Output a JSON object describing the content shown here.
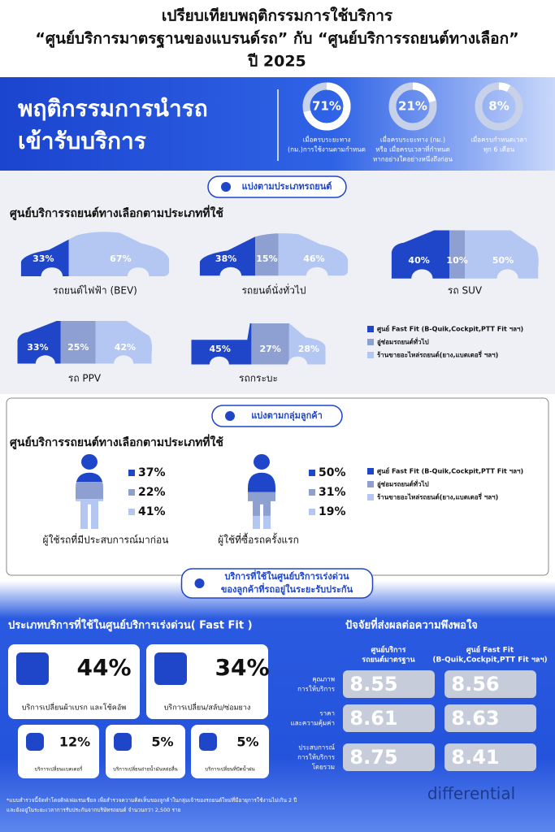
{
  "header": {
    "title": [
      "เปรียบเทียบพฤติกรรมการใช้บริการ",
      "“ศูนย์บริการมาตรฐานของแบรนด์รถ” กับ “ศูนย์บริการรถยนต์ทางเลือก”",
      "ปี 2025"
    ]
  },
  "behavior": {
    "title": [
      "พฤติกรรมการนำรถ",
      "เข้ารับบริการ"
    ],
    "stats": [
      {
        "value": 71,
        "label": "71%",
        "caption": [
          "เมื่อครบระยะทาง",
          "(กม.)การใช้งานตามกำหนด"
        ]
      },
      {
        "value": 21,
        "label": "21%",
        "caption": [
          "เมื่อครบระยะทาง (กม.)",
          "หรือ เมื่อครบเวลาที่กำหนด",
          "หากอย่างใดอย่างหนึ่งถึงก่อน"
        ]
      },
      {
        "value": 8,
        "label": "8%",
        "caption": [
          "เมื่อครบกำหนดเวลา",
          "ทุก 6 เดือน"
        ]
      }
    ]
  },
  "segment_colors": [
    "#1f45c9",
    "#8e9fd2",
    "#b4c7f2"
  ],
  "legend": [
    "ศูนย์ Fast Fit (B-Quik,Cockpit,PTT Fit ฯลฯ)",
    "อู่ซ่อมรถยนต์ทั่วไป",
    "ร้านขายอะไหล่รถยนต์(ยาง,แบตเตอรี่ ฯลฯ)"
  ],
  "by_car_type": {
    "tag": "แบ่งตามประเภทรถยนต์",
    "heading": "ศูนย์บริการรถยนต์ทางเลือกตามประเภทที่ใช้",
    "items": [
      {
        "label": "รถยนต์ไฟฟ้า (BEV)",
        "values": [
          33,
          null,
          67
        ],
        "value_labels": [
          "33%",
          null,
          "67%"
        ]
      },
      {
        "label": "รถยนต์นั่งทั่วไป",
        "values": [
          38,
          15,
          46
        ],
        "value_labels": [
          "38%",
          "15%",
          "46%"
        ]
      },
      {
        "label": "รถ SUV",
        "values": [
          40,
          10,
          50
        ],
        "value_labels": [
          "40%",
          "10%",
          "50%"
        ]
      },
      {
        "label": "รถ PPV",
        "values": [
          33,
          25,
          42
        ],
        "value_labels": [
          "33%",
          "25%",
          "42%"
        ]
      },
      {
        "label": "รถกระบะ",
        "values": [
          45,
          27,
          28
        ],
        "value_labels": [
          "45%",
          "27%",
          "28%"
        ]
      }
    ]
  },
  "by_customer": {
    "tag": "แบ่งตามกลุ่มลูกค้า",
    "heading": "ศูนย์บริการรถยนต์ทางเลือกตามประเภทที่ใช้",
    "items": [
      {
        "label": "ผู้ใช้รถที่มีประสบการณ์มาก่อน",
        "values": [
          37,
          22,
          41
        ],
        "value_labels": [
          "37%",
          "22%",
          "41%"
        ]
      },
      {
        "label": "ผู้ใช้ที่ซื้อรถครั้งแรก",
        "values": [
          50,
          31,
          19
        ],
        "value_labels": [
          "50%",
          "31%",
          "19%"
        ]
      }
    ]
  },
  "fast_fit": {
    "tag": [
      "บริการที่ใช้ในศูนย์บริการเร่งด่วน",
      "ของลูกค้าที่รถอยู่ในระยะรับประกัน"
    ],
    "heading": "ประเภทบริการที่ใช้ในศูนย์บริการเร่งด่วน( Fast Fit )",
    "services": [
      {
        "value": "44%",
        "label": "บริการเปลี่ยนผ้าเบรก และโช้คอัพ"
      },
      {
        "value": "34%",
        "label": "บริการเปลี่ยน/สลับ/ซ่อมยาง"
      },
      {
        "value": "12%",
        "label": "บริการเปลี่ยนแบตเตอรี่"
      },
      {
        "value": "5%",
        "label": "บริการเปลี่ยนถ่ายน้ำมันหล่อลื่น"
      },
      {
        "value": "5%",
        "label": "บริการเปลี่ยนที่ปัดน้ำฝน"
      }
    ]
  },
  "satisfaction": {
    "heading": "ปัจจัยที่ส่งผลต่อความพึงพอใจ",
    "columns": [
      [
        "ศูนย์บริการ",
        "รถยนต์มาตรฐาน"
      ],
      [
        "ศูนย์ Fast Fit",
        "(B-Quik,Cockpit,PTT Fit ฯลฯ)"
      ]
    ],
    "rows": [
      {
        "label": [
          "คุณภาพ",
          "การให้บริการ"
        ],
        "scores": [
          8.55,
          8.56
        ]
      },
      {
        "label": [
          "ราคา",
          "และความคุ้มค่า"
        ],
        "scores": [
          8.61,
          8.63
        ]
      },
      {
        "label": [
          "ประสบการณ์",
          "การให้บริการ",
          "โดยรวม"
        ],
        "scores": [
          8.75,
          8.41
        ]
      }
    ]
  },
  "footnote": [
    "*แบบสำรวจนี้จัดทำโดยดิฟเฟอเรนเชียล เพื่อสำรวจความคิดเห็นของลูกค้าในกลุ่มเจ้าของรถยนต์ใหม่ที่มีอายุการใช้งานไม่เกิน 2 ปี",
    "และยังอยู่ในระยะเวลาการรับประกันจากบริษัทรถยนต์ จำนวนกว่า 2,500 ราย"
  ],
  "logo": "differential"
}
